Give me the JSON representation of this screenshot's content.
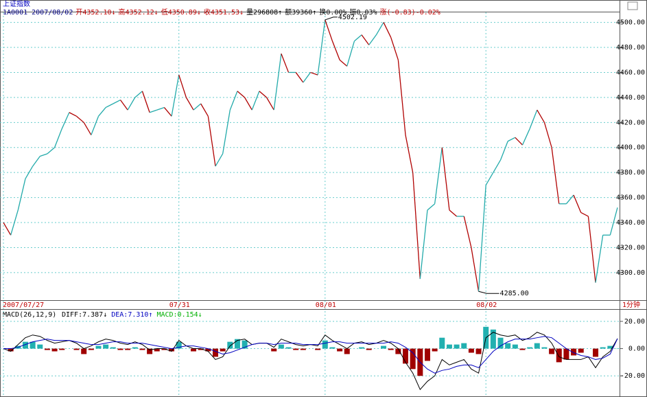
{
  "chart_data": [
    {
      "type": "updown-line",
      "title": "上证指数",
      "info": [
        {
          "text": "1A0001 2007/08/02",
          "color": "#000080"
        },
        {
          "text": "开4352.10↓",
          "color": "#c00000"
        },
        {
          "text": "高4352.12↓",
          "color": "#c00000"
        },
        {
          "text": "低4350.89↓",
          "color": "#c00000"
        },
        {
          "text": "收4351.53↓",
          "color": "#c00000"
        },
        {
          "text": "量296808↑",
          "color": "#000000"
        },
        {
          "text": "额39360↑",
          "color": "#000000"
        },
        {
          "text": "换0.00%",
          "color": "#000000"
        },
        {
          "text": "振0.03%",
          "color": "#000000"
        },
        {
          "text": "涨(-0.83)-0.02%",
          "color": "#c00000"
        }
      ],
      "annotations": [
        "4502.19",
        "4285.00"
      ],
      "period_label": "1分钟",
      "categories": [
        "2007/07/27",
        null,
        null,
        null,
        null,
        null,
        null,
        null,
        null,
        null,
        null,
        null,
        null,
        null,
        null,
        null,
        null,
        null,
        null,
        null,
        null,
        null,
        null,
        null,
        "07/31",
        null,
        null,
        null,
        null,
        null,
        null,
        null,
        null,
        null,
        null,
        null,
        null,
        null,
        null,
        null,
        null,
        null,
        null,
        null,
        "08/01",
        null,
        null,
        null,
        null,
        null,
        null,
        null,
        null,
        null,
        null,
        null,
        null,
        null,
        null,
        null,
        null,
        null,
        null,
        null,
        null,
        null,
        "08/02",
        null,
        null,
        null,
        null,
        null,
        null,
        null,
        null,
        null,
        null,
        null,
        null,
        null,
        null,
        null,
        null,
        null,
        null
      ],
      "values": [
        4340,
        4330,
        4350,
        4375,
        4385,
        4393,
        4395,
        4400,
        4415,
        4428,
        4425,
        4420,
        4410,
        4425,
        4432,
        4435,
        4438,
        4430,
        4440,
        4445,
        4428,
        4430,
        4432,
        4425,
        4458,
        4440,
        4430,
        4435,
        4425,
        4385,
        4395,
        4430,
        4445,
        4440,
        4430,
        4445,
        4440,
        4430,
        4475,
        4460,
        4460,
        4452,
        4460,
        4458,
        4502,
        4485,
        4470,
        4465,
        4485,
        4490,
        4482,
        4490,
        4500,
        4488,
        4470,
        4410,
        4380,
        4295,
        4350,
        4355,
        4400,
        4350,
        4345,
        4345,
        4320,
        4285,
        4370,
        4380,
        4390,
        4405,
        4408,
        4402,
        4415,
        4430,
        4420,
        4400,
        4355,
        4355,
        4362,
        4348,
        4345,
        4292,
        4330,
        4330,
        4352
      ],
      "up_color": "#22aaaa",
      "down_color": "#b00000",
      "ylim": [
        4278,
        4508
      ],
      "yticks": [
        {
          "value": 4300,
          "label": "4300.00"
        },
        {
          "value": 4320,
          "label": "4320.00"
        },
        {
          "value": 4340,
          "label": "4340.00"
        },
        {
          "value": 4360,
          "label": "4360.00"
        },
        {
          "value": 4380,
          "label": "4380.00"
        },
        {
          "value": 4400,
          "label": "4400.00"
        },
        {
          "value": 4420,
          "label": "4420.00"
        },
        {
          "value": 4440,
          "label": "4440.00"
        },
        {
          "value": 4460,
          "label": "4460.00"
        },
        {
          "value": 4480,
          "label": "4480.00"
        },
        {
          "value": 4500,
          "label": "4500.00"
        }
      ],
      "grid": true
    },
    {
      "type": "macd",
      "title": "MACD(26,12,9)",
      "series": [
        {
          "name": "DIFF:7.387↓",
          "color": "#000000",
          "kind": "line",
          "values": [
            0,
            -2,
            3,
            8,
            10,
            9,
            6,
            4,
            5,
            6,
            4,
            0,
            2,
            5,
            7,
            6,
            4,
            3,
            5,
            3,
            -1,
            0,
            0,
            -2,
            6,
            2,
            0,
            0,
            -2,
            -8,
            -6,
            2,
            6,
            7,
            3,
            4,
            4,
            1,
            7,
            5,
            3,
            2,
            3,
            2,
            10,
            6,
            3,
            0,
            4,
            5,
            3,
            4,
            6,
            4,
            0,
            -10,
            -18,
            -30,
            -24,
            -20,
            -8,
            -12,
            -10,
            -8,
            -15,
            -18,
            8,
            12,
            10,
            9,
            10,
            6,
            8,
            12,
            10,
            4,
            -6,
            -8,
            -8,
            -8,
            -6,
            -14,
            -6,
            -2,
            7.387
          ]
        },
        {
          "name": "DEA:7.310↑",
          "color": "#0000c0",
          "kind": "line",
          "values": [
            0,
            0,
            1,
            3,
            5,
            6,
            7,
            6,
            6,
            6,
            5,
            4,
            3,
            3,
            4,
            5,
            5,
            4,
            4,
            4,
            3,
            2,
            1,
            0,
            1,
            2,
            2,
            1,
            0,
            -2,
            -4,
            -3,
            -1,
            1,
            3,
            4,
            4,
            3,
            4,
            4,
            4,
            3,
            3,
            3,
            4,
            5,
            5,
            4,
            4,
            4,
            4,
            4,
            4,
            5,
            4,
            1,
            -3,
            -10,
            -15,
            -18,
            -16,
            -15,
            -13,
            -12,
            -12,
            -14,
            -8,
            -2,
            2,
            5,
            7,
            7,
            7,
            8,
            9,
            8,
            4,
            0,
            -3,
            -5,
            -6,
            -8,
            -7,
            -4,
            7.31
          ]
        },
        {
          "name": "MACD:0.154↓",
          "color": "#00b000",
          "kind": "histogram",
          "up_color": "#22b0b0",
          "down_color": "#a00000",
          "values": [
            0,
            -2,
            2,
            5,
            5,
            3,
            -1,
            -2,
            -1,
            0,
            -1,
            -4,
            -1,
            2,
            3,
            1,
            -1,
            -1,
            1,
            -1,
            -4,
            -2,
            -1,
            -2,
            5,
            0,
            -2,
            -1,
            -2,
            -6,
            -2,
            5,
            7,
            6,
            0,
            0,
            0,
            -2,
            3,
            1,
            -1,
            -1,
            0,
            -1,
            6,
            1,
            -2,
            -4,
            0,
            1,
            -1,
            0,
            2,
            -1,
            -4,
            -11,
            -15,
            -20,
            -9,
            -2,
            8,
            3,
            3,
            4,
            -3,
            -4,
            16,
            14,
            8,
            4,
            3,
            -1,
            1,
            4,
            1,
            -4,
            -10,
            -8,
            -5,
            -3,
            0,
            -6,
            1,
            2,
            0.154
          ]
        }
      ],
      "ylim": [
        -35,
        28
      ],
      "yticks": [
        {
          "value": 20,
          "label": "20.00"
        },
        {
          "value": 0,
          "label": "0.00"
        },
        {
          "value": -20,
          "label": "-20.00"
        }
      ],
      "grid": true
    }
  ]
}
